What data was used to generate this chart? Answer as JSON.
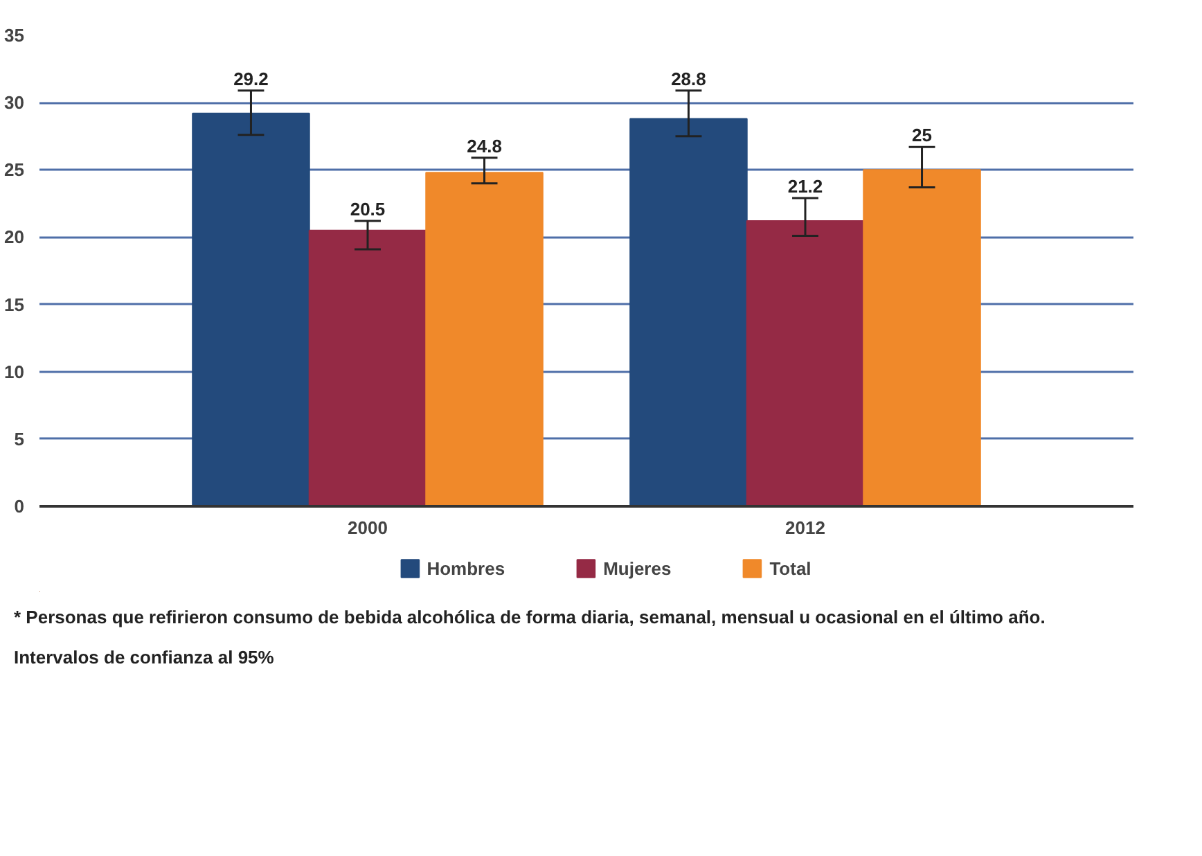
{
  "chart_data": {
    "type": "bar",
    "categories": [
      "2000",
      "2012"
    ],
    "series": [
      {
        "name": "Hombres",
        "color": "#234a7c",
        "values": [
          29.2,
          28.8
        ],
        "errors": [
          [
            27.6,
            30.9
          ],
          [
            27.5,
            30.9
          ]
        ]
      },
      {
        "name": "Mujeres",
        "color": "#952a45",
        "values": [
          20.5,
          21.2
        ],
        "errors": [
          [
            19.1,
            21.2
          ],
          [
            20.1,
            22.9
          ]
        ]
      },
      {
        "name": "Total",
        "color": "#f0892a",
        "values": [
          24.8,
          25
        ],
        "errors": [
          [
            24.0,
            25.9
          ],
          [
            23.7,
            26.7
          ]
        ]
      }
    ],
    "ylim": [
      0,
      35
    ],
    "yticks": [
      0,
      5,
      10,
      15,
      20,
      25,
      30,
      35
    ],
    "grid": "y",
    "legend": "bottom",
    "data_labels": true,
    "annotations": [
      "* Personas que refirieron consumo de bebida alcohólica de forma diaria, semanal, mensual u ocasional en el último año.",
      "Intervalos de confianza al 95%"
    ]
  }
}
